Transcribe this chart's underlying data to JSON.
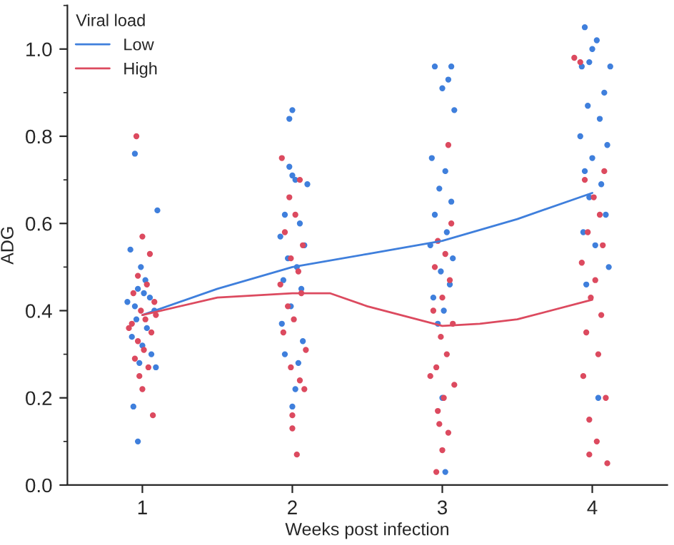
{
  "chart_data": {
    "type": "scatter",
    "xlabel": "Weeks post infection",
    "ylabel": "ADG",
    "legend_title": "Viral load",
    "legend": "top left",
    "grid": false,
    "marker": "circle",
    "xlim": [
      0.5,
      4.5
    ],
    "xticks": [
      1,
      2,
      3,
      4
    ],
    "ylim": [
      0,
      1.1
    ],
    "yticks": [
      {
        "value": 0.0,
        "label": "0.0"
      },
      {
        "value": 0.1,
        "label": null
      },
      {
        "value": 0.2,
        "label": "0.2"
      },
      {
        "value": 0.3,
        "label": null
      },
      {
        "value": 0.4,
        "label": "0.4"
      },
      {
        "value": 0.5,
        "label": null
      },
      {
        "value": 0.6,
        "label": "0.6"
      },
      {
        "value": 0.7,
        "label": null
      },
      {
        "value": 0.8,
        "label": "0.8"
      },
      {
        "value": 0.9,
        "label": null
      },
      {
        "value": 1.0,
        "label": "1.0"
      },
      {
        "value": 1.1,
        "label": null
      }
    ],
    "series": [
      {
        "color": "#3f7fdc",
        "x": [
          0.95,
          1.1,
          0.92,
          0.97,
          0.94,
          0.99,
          1.02,
          0.97,
          1.05,
          0.9,
          1.08,
          0.96,
          1.03,
          0.93,
          1.0,
          1.06,
          0.98,
          1.09,
          0.95,
          1.01,
          2.0,
          1.98,
          1.98,
          2.0,
          2.02,
          2.1,
          1.95,
          2.05,
          1.92,
          2.08,
          1.97,
          2.03,
          1.94,
          2.06,
          1.99,
          1.93,
          2.07,
          1.95,
          2.04,
          2.0,
          2.02,
          2.95,
          3.06,
          3.0,
          3.04,
          3.08,
          2.93,
          3.02,
          2.98,
          3.06,
          2.95,
          3.03,
          2.92,
          3.07,
          2.99,
          3.05,
          2.94,
          3.01,
          2.97,
          3.0,
          3.02,
          3.95,
          4.03,
          4.0,
          3.98,
          3.93,
          4.12,
          4.08,
          3.97,
          4.05,
          3.92,
          4.1,
          4.0,
          3.95,
          4.06,
          3.98,
          4.09,
          3.94,
          4.02,
          4.11,
          3.96,
          4.04
        ],
        "values": [
          0.76,
          0.63,
          0.54,
          0.1,
          0.18,
          0.5,
          0.47,
          0.45,
          0.43,
          0.42,
          0.4,
          0.38,
          0.36,
          0.34,
          0.32,
          0.3,
          0.28,
          0.27,
          0.41,
          0.44,
          0.86,
          0.84,
          0.73,
          0.71,
          0.7,
          0.69,
          0.62,
          0.6,
          0.57,
          0.55,
          0.52,
          0.5,
          0.47,
          0.45,
          0.41,
          0.37,
          0.33,
          0.3,
          0.28,
          0.18,
          0.22,
          0.96,
          0.96,
          0.91,
          0.93,
          0.86,
          0.75,
          0.72,
          0.68,
          0.65,
          0.62,
          0.58,
          0.55,
          0.52,
          0.49,
          0.46,
          0.43,
          0.4,
          0.37,
          0.2,
          0.03,
          1.05,
          1.02,
          1.0,
          0.97,
          0.96,
          0.96,
          0.9,
          0.87,
          0.84,
          0.8,
          0.78,
          0.75,
          0.72,
          0.69,
          0.66,
          0.62,
          0.58,
          0.55,
          0.5,
          0.46,
          0.2
        ]
      },
      {
        "color": "#dc4a5f",
        "x": [
          0.96,
          1.0,
          1.05,
          1.07,
          1.0,
          0.97,
          1.03,
          0.94,
          1.08,
          0.99,
          1.02,
          0.93,
          1.06,
          0.97,
          1.01,
          0.95,
          1.04,
          0.98,
          1.09,
          0.91,
          1.93,
          2.03,
          2.0,
          2.0,
          2.08,
          2.05,
          1.98,
          2.02,
          1.95,
          2.07,
          1.99,
          2.04,
          1.92,
          2.06,
          1.97,
          2.01,
          1.94,
          2.09,
          1.99,
          2.05,
          3.04,
          2.96,
          3.0,
          2.98,
          2.92,
          3.06,
          2.97,
          3.02,
          2.95,
          3.05,
          3.0,
          2.94,
          3.07,
          2.99,
          3.03,
          2.96,
          3.08,
          3.01,
          2.97,
          3.04,
          3.88,
          3.92,
          4.1,
          3.98,
          4.03,
          4.08,
          3.95,
          4.01,
          4.05,
          3.97,
          4.07,
          3.93,
          4.02,
          3.99,
          4.06,
          3.96,
          4.04,
          3.94,
          4.09,
          3.98
        ],
        "values": [
          0.8,
          0.57,
          0.53,
          0.16,
          0.22,
          0.48,
          0.46,
          0.44,
          0.42,
          0.4,
          0.38,
          0.37,
          0.35,
          0.33,
          0.31,
          0.29,
          0.27,
          0.25,
          0.39,
          0.36,
          0.75,
          0.07,
          0.13,
          0.16,
          0.22,
          0.7,
          0.66,
          0.62,
          0.58,
          0.55,
          0.52,
          0.49,
          0.46,
          0.44,
          0.41,
          0.38,
          0.35,
          0.31,
          0.27,
          0.24,
          0.78,
          0.03,
          0.08,
          0.14,
          0.25,
          0.6,
          0.56,
          0.53,
          0.5,
          0.47,
          0.43,
          0.4,
          0.37,
          0.34,
          0.3,
          0.27,
          0.23,
          0.2,
          0.17,
          0.12,
          0.98,
          0.97,
          0.05,
          0.07,
          0.1,
          0.72,
          0.7,
          0.66,
          0.62,
          0.58,
          0.55,
          0.51,
          0.47,
          0.43,
          0.39,
          0.35,
          0.3,
          0.25,
          0.2,
          0.15
        ]
      },
      {
        "type": "line",
        "marker": "none",
        "name": "Low",
        "color": "#3f7fdc",
        "x": [
          1,
          1.5,
          2,
          2.5,
          3,
          3.5,
          4
        ],
        "values": [
          0.39,
          0.45,
          0.5,
          0.53,
          0.56,
          0.61,
          0.67
        ]
      },
      {
        "type": "line",
        "marker": "none",
        "name": "High",
        "color": "#dc4a5f",
        "x": [
          1,
          1.5,
          2,
          2.25,
          2.5,
          3,
          3.25,
          3.5,
          4
        ],
        "values": [
          0.39,
          0.43,
          0.44,
          0.44,
          0.41,
          0.365,
          0.37,
          0.38,
          0.425
        ]
      }
    ]
  }
}
